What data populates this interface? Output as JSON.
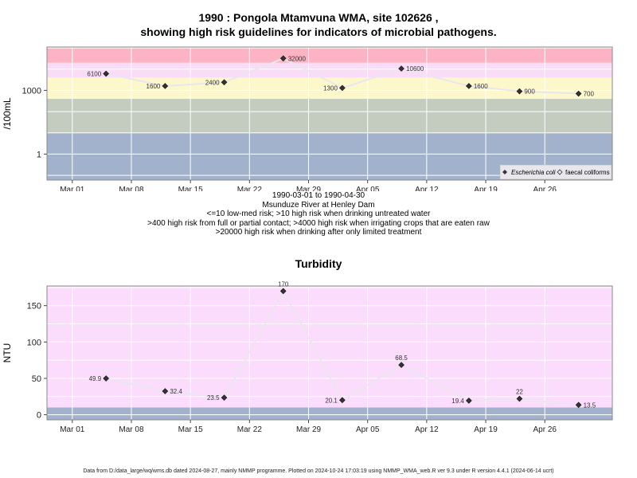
{
  "chart_data": [
    {
      "type": "line",
      "title_line1": "1990 : Pongola Mtamvuna WMA, site 102626 ,",
      "title_line2": "showing high risk guidelines for indicators of microbial pathogens.",
      "ylabel": "/100mL",
      "yscale": "log",
      "yticks": [
        1,
        1000
      ],
      "ylim": [
        0.06,
        110000
      ],
      "xlim": [
        "1990-02-26",
        "1990-05-04"
      ],
      "xticks": [
        "1990-03-01",
        "1990-03-08",
        "1990-03-15",
        "1990-03-22",
        "1990-03-29",
        "1990-04-05",
        "1990-04-12",
        "1990-04-19",
        "1990-04-26"
      ],
      "xtick_labels": [
        "Mar 01",
        "Mar 08",
        "Mar 15",
        "Mar 22",
        "Mar 29",
        "Apr 05",
        "Apr 12",
        "Apr 19",
        "Apr 26"
      ],
      "bands": [
        {
          "from": 0.06,
          "to": 10,
          "color": "#a3b2cc"
        },
        {
          "from": 10,
          "to": 400,
          "color": "#c4ccc0"
        },
        {
          "from": 400,
          "to": 4000,
          "color": "#fdf7cc"
        },
        {
          "from": 4000,
          "to": 20000,
          "color": "#fbdcf8"
        },
        {
          "from": 20000,
          "to": 110000,
          "color": "#fcb4c4"
        }
      ],
      "series": [
        {
          "name": "Escherichia coli",
          "x": [
            "1990-03-05",
            "1990-03-12",
            "1990-03-19",
            "1990-03-26",
            "1990-04-02",
            "1990-04-09",
            "1990-04-17",
            "1990-04-23",
            "1990-04-30"
          ],
          "y": [
            6100,
            1600,
            2400,
            32000,
            1300,
            10600,
            1600,
            900,
            700
          ],
          "labels": [
            "6100",
            "1600",
            "2400",
            "32000",
            "1300",
            "10600",
            "1600",
            "900",
            "700"
          ]
        }
      ],
      "legend": {
        "position": "bottom-right",
        "entries": [
          "Escherichia coli",
          "faecal coliforms"
        ]
      },
      "grid": true
    },
    {
      "type": "line",
      "title": "Turbidity",
      "ylabel": "NTU",
      "yticks": [
        0,
        50,
        100,
        150
      ],
      "ylim": [
        -7,
        177
      ],
      "xlim": [
        "1990-02-26",
        "1990-05-04"
      ],
      "xticks": [
        "1990-03-01",
        "1990-03-08",
        "1990-03-15",
        "1990-03-22",
        "1990-03-29",
        "1990-04-05",
        "1990-04-12",
        "1990-04-19",
        "1990-04-26"
      ],
      "xtick_labels": [
        "Mar 01",
        "Mar 08",
        "Mar 15",
        "Mar 22",
        "Mar 29",
        "Apr 05",
        "Apr 12",
        "Apr 19",
        "Apr 26"
      ],
      "bands": [
        {
          "from": -7,
          "to": 10,
          "color": "#a3b2cc"
        },
        {
          "from": 10,
          "to": 177,
          "color": "#fbdcfc"
        }
      ],
      "series": [
        {
          "name": "Turbidity",
          "x": [
            "1990-03-05",
            "1990-03-12",
            "1990-03-19",
            "1990-03-26",
            "1990-04-02",
            "1990-04-09",
            "1990-04-17",
            "1990-04-23",
            "1990-04-30"
          ],
          "y": [
            49.9,
            32.4,
            23.5,
            170,
            20.1,
            68.5,
            19.4,
            22,
            13.5
          ],
          "labels": [
            "49.9",
            "32.4",
            "23.5",
            "170",
            "20.1",
            "68.5",
            "19.4",
            "22",
            "13.5"
          ]
        }
      ],
      "grid": true
    }
  ],
  "info": {
    "date_range": "1990-03-01 to 1990-04-30",
    "station": "Msunduze River at Henley Dam",
    "guideline1": "<=10 low-med risk; >10 high risk when drinking untreated water",
    "guideline2": ">400 high risk from full or partial contact; >4000 high risk when irrigating crops that are eaten raw",
    "guideline3": ">20000 high risk when drinking after only limited treatment"
  },
  "footer": "Data from D:/data_large/wq/wms.db dated 2024-08-27, mainly NMMP programme. Plotted on 2024-10-24 17:03:19 using NMMP_WMA_web.R ver 9.3 under R version 4.4.1 (2024-06-14 ucrt)"
}
